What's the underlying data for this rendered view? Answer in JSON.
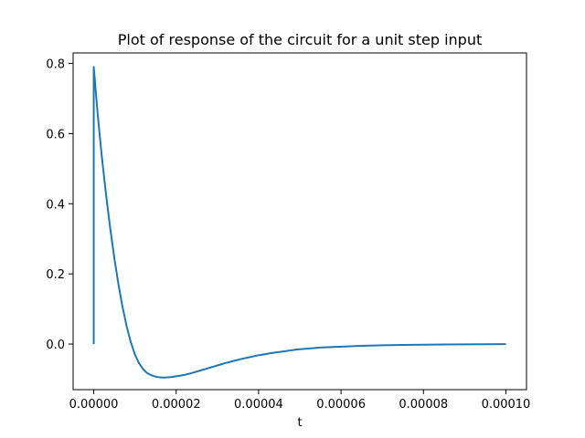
{
  "chart_data": {
    "type": "line",
    "title": "Plot of response of the circuit for a unit step input",
    "xlabel": "t",
    "ylabel": "",
    "xlim": [
      -5e-06,
      0.000105
    ],
    "ylim": [
      -0.13,
      0.83
    ],
    "x_ticks": [
      0,
      2e-05,
      4e-05,
      6e-05,
      8e-05,
      0.0001
    ],
    "x_tick_labels": [
      "0.00000",
      "0.00002",
      "0.00004",
      "0.00006",
      "0.00008",
      "0.00010"
    ],
    "y_ticks": [
      0,
      0.2,
      0.4,
      0.6,
      0.8
    ],
    "y_tick_labels": [
      "0.0",
      "0.2",
      "0.4",
      "0.6",
      "0.8"
    ],
    "grid": false,
    "line_color": "#1f77b4",
    "series": [
      {
        "x": [
          0,
          0,
          1e-06,
          2e-06,
          3e-06,
          4e-06,
          5e-06,
          6e-06,
          7e-06,
          8e-06,
          9e-06,
          1e-05,
          1.1e-05,
          1.2e-05,
          1.3e-05,
          1.4e-05,
          1.5e-05,
          1.6e-05,
          1.7e-05,
          1.8e-05,
          1.9e-05,
          2e-05,
          2.2e-05,
          2.4e-05,
          2.6e-05,
          2.8e-05,
          3e-05,
          3.2e-05,
          3.4e-05,
          3.6e-05,
          3.8e-05,
          4e-05,
          4.3e-05,
          4.6e-05,
          4.9e-05,
          5.2e-05,
          5.5e-05,
          5.8e-05,
          6.1e-05,
          6.4e-05,
          6.7e-05,
          7e-05,
          7.5e-05,
          8e-05,
          8.5e-05,
          9e-05,
          9.5e-05,
          0.0001
        ],
        "y": [
          0,
          0.79,
          0.65,
          0.53,
          0.425,
          0.33,
          0.245,
          0.17,
          0.105,
          0.05,
          0.005,
          -0.03,
          -0.055,
          -0.072,
          -0.083,
          -0.089,
          -0.093,
          -0.095,
          -0.0955,
          -0.095,
          -0.094,
          -0.092,
          -0.088,
          -0.082,
          -0.075,
          -0.068,
          -0.061,
          -0.054,
          -0.048,
          -0.042,
          -0.037,
          -0.032,
          -0.026,
          -0.021,
          -0.016,
          -0.013,
          -0.01,
          -0.0085,
          -0.007,
          -0.0055,
          -0.0045,
          -0.0035,
          -0.0025,
          -0.0018,
          -0.0012,
          -0.0008,
          -0.0005,
          -0.0003
        ]
      }
    ]
  }
}
